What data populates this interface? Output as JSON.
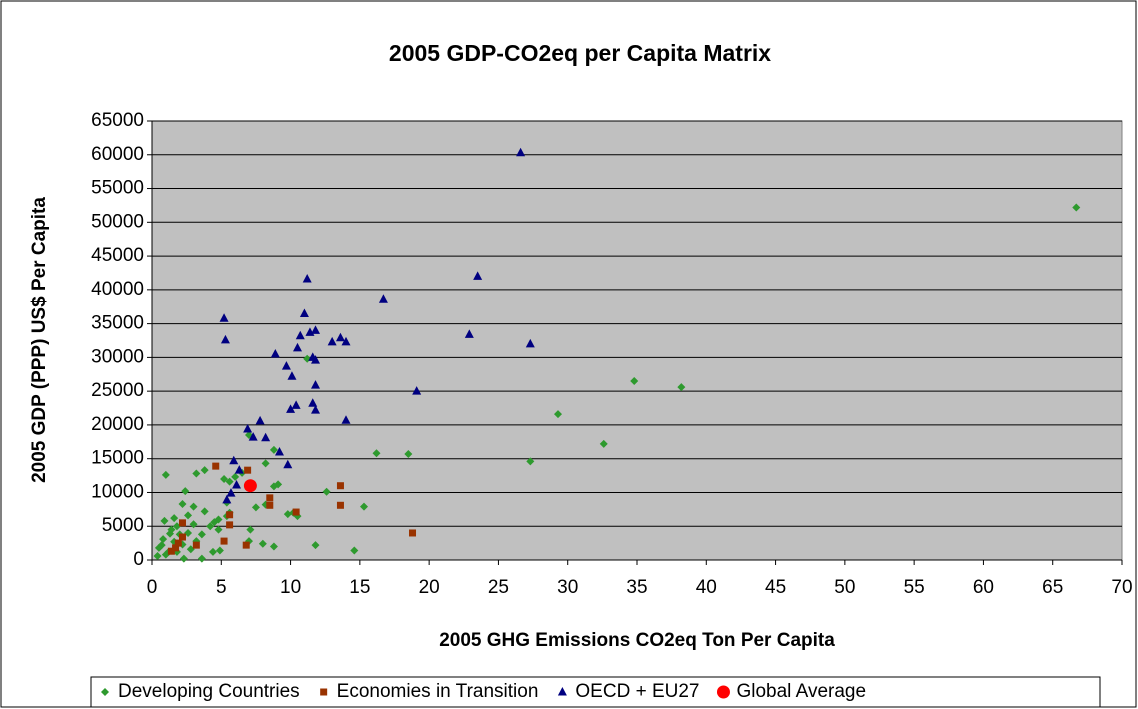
{
  "chart_data": {
    "type": "scatter",
    "title": "2005 GDP-CO2eq per Capita Matrix",
    "x_label": "2005 GHG Emissions CO2eq Ton Per Capita",
    "y_label": "2005 GDP (PPP) US$ Per Capita",
    "xlim": [
      0,
      70
    ],
    "xticks": [
      0,
      5,
      10,
      15,
      20,
      25,
      30,
      35,
      40,
      45,
      50,
      55,
      60,
      65,
      70
    ],
    "ylim": [
      0,
      65000
    ],
    "yticks": [
      0,
      5000,
      10000,
      15000,
      20000,
      25000,
      30000,
      35000,
      40000,
      45000,
      50000,
      55000,
      60000,
      65000
    ],
    "grid": true,
    "legend": "bottom",
    "series": [
      {
        "name": "Developing Countries",
        "color": "#2e9a2e",
        "marker": "diamond",
        "x": [
          66.7,
          34.8,
          38.2,
          29.3,
          32.6,
          27.3,
          16.2,
          18.5,
          15.3,
          14.6,
          11.8,
          12.6,
          11.2,
          8.8,
          8.2,
          7.0,
          6.5,
          6.0,
          5.6,
          5.2,
          5.4,
          5.6,
          4.8,
          4.2,
          4.8,
          3.8,
          3.2,
          2.4,
          3.8,
          3.0,
          2.2,
          1.0,
          0.9,
          1.6,
          2.6,
          3.6,
          4.4,
          4.9,
          3.6,
          2.3,
          1.2,
          0.5,
          0.8,
          1.3,
          1.8,
          2.6,
          3.2,
          0.4,
          0.7,
          1.6,
          2.2,
          1.0,
          1.8,
          2.8,
          7.1,
          7.5,
          8.2,
          8.8,
          9.1,
          8.0,
          8.8,
          9.8,
          10.2,
          10.5,
          7.0,
          4.5,
          5.4,
          1.4,
          2.0,
          3.0
        ],
        "values": [
          52200,
          26500,
          25600,
          21600,
          17200,
          14600,
          15800,
          15700,
          7900,
          1400,
          2200,
          10100,
          29800,
          16300,
          14300,
          18500,
          12900,
          12300,
          11600,
          12000,
          8500,
          7000,
          6000,
          5000,
          4500,
          13300,
          12800,
          10200,
          7200,
          7900,
          8300,
          12600,
          5800,
          6200,
          6600,
          3800,
          1200,
          1400,
          200,
          200,
          1200,
          1800,
          3100,
          3900,
          5000,
          4000,
          2800,
          600,
          2200,
          2700,
          2300,
          800,
          1200,
          1600,
          4500,
          7800,
          8200,
          10900,
          11200,
          2400,
          2000,
          6800,
          7000,
          6500,
          2800,
          5600,
          6500,
          4500,
          3800,
          5300
        ]
      },
      {
        "name": "Economies in Transition",
        "color": "#993300",
        "marker": "square",
        "x": [
          4.6,
          6.9,
          13.6,
          13.6,
          18.8,
          10.4,
          8.5,
          8.5,
          5.6,
          5.6,
          6.8,
          5.2,
          2.2,
          2.2,
          1.7,
          1.4,
          3.2,
          1.9
        ],
        "values": [
          13900,
          13300,
          11000,
          8100,
          4000,
          7100,
          8100,
          9200,
          6700,
          5200,
          2200,
          2800,
          5500,
          3400,
          1800,
          1300,
          2200,
          2500
        ]
      },
      {
        "name": "OECD + EU27",
        "color": "#000080",
        "marker": "triangle",
        "x": [
          26.6,
          23.5,
          11.2,
          16.7,
          11.0,
          5.2,
          27.3,
          22.9,
          5.3,
          10.7,
          11.4,
          11.8,
          13.0,
          13.6,
          14.0,
          10.5,
          11.6,
          11.8,
          8.9,
          9.7,
          10.1,
          11.8,
          19.1,
          11.6,
          10.4,
          10.0,
          11.8,
          14.0,
          7.8,
          6.9,
          7.3,
          8.2,
          9.2,
          9.8,
          5.9,
          6.3,
          6.1,
          5.7,
          5.4
        ],
        "values": [
          60300,
          42000,
          41600,
          38600,
          36500,
          35800,
          32000,
          33400,
          32600,
          33200,
          33700,
          34000,
          32300,
          32900,
          32300,
          31400,
          30000,
          29600,
          30500,
          28700,
          27200,
          25900,
          25000,
          23200,
          22900,
          22300,
          22200,
          20700,
          20600,
          19400,
          18200,
          18100,
          16000,
          14100,
          14700,
          13300,
          11100,
          9900,
          8900
        ]
      },
      {
        "name": "Global Average",
        "color": "#ff0000",
        "marker": "circle",
        "x": [
          7.1
        ],
        "values": [
          11000
        ]
      }
    ]
  }
}
